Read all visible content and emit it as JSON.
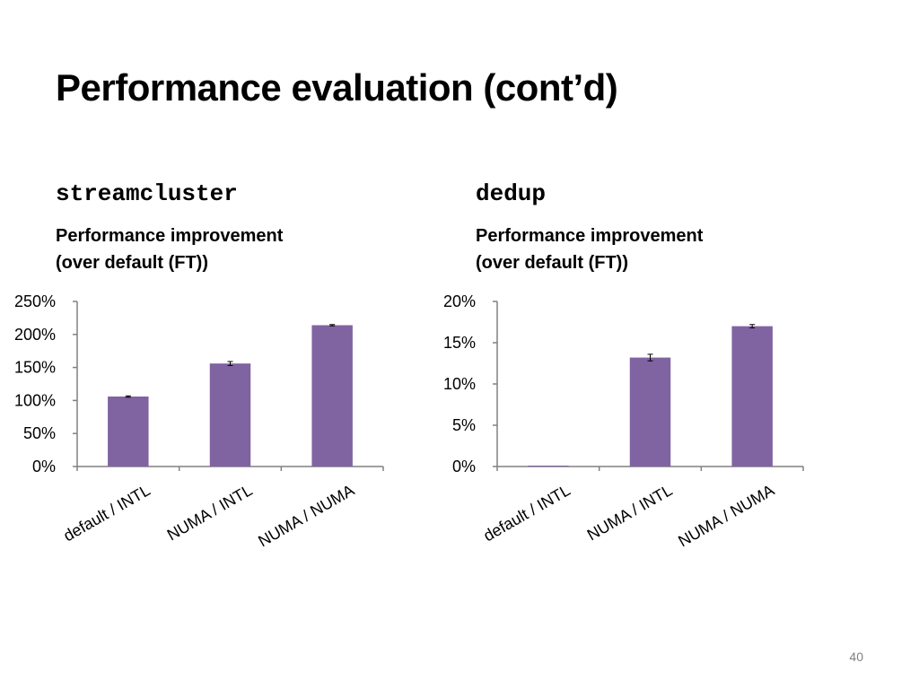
{
  "slide": {
    "title": "Performance evaluation (cont’d)",
    "page_number": "40"
  },
  "colors": {
    "bar": "#8064a2",
    "axis": "#808080",
    "error_bar": "#000000"
  },
  "chart_data": [
    {
      "panel_name": "streamcluster",
      "type": "bar",
      "title_lines": [
        "Performance improvement",
        "(over default (FT))"
      ],
      "categories": [
        "default / INTL",
        "NUMA / INTL",
        "NUMA / NUMA"
      ],
      "values": [
        106,
        156,
        214
      ],
      "errors": [
        1,
        3,
        1
      ],
      "ylim": [
        0,
        250
      ],
      "yticks": [
        0,
        50,
        100,
        150,
        200,
        250
      ],
      "ytick_labels": [
        "0%",
        "50%",
        "100%",
        "150%",
        "200%",
        "250%"
      ],
      "xlabel": "",
      "ylabel": "",
      "grid": false,
      "legend": false
    },
    {
      "panel_name": "dedup",
      "type": "bar",
      "title_lines": [
        "Performance improvement",
        "(over default (FT))"
      ],
      "categories": [
        "default / INTL",
        "NUMA / INTL",
        "NUMA / NUMA"
      ],
      "values": [
        0,
        13.2,
        17.0
      ],
      "errors": [
        0,
        0.4,
        0.2
      ],
      "ylim": [
        0,
        20
      ],
      "yticks": [
        0,
        5,
        10,
        15,
        20
      ],
      "ytick_labels": [
        "0%",
        "5%",
        "10%",
        "15%",
        "20%"
      ],
      "xlabel": "",
      "ylabel": "",
      "grid": false,
      "legend": false
    }
  ]
}
